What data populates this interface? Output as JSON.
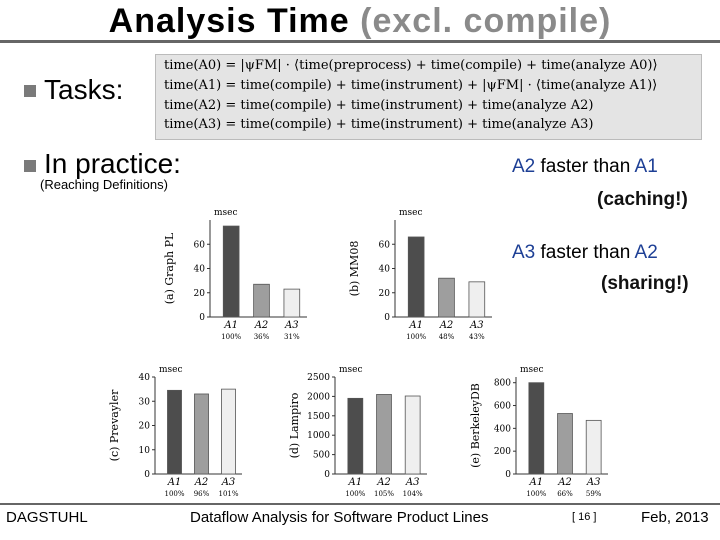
{
  "slide": {
    "title_main": "Analysis Time",
    "title_paren": "(excl. compile)",
    "bullet_tasks": "Tasks:",
    "bullet_practice": "In practice:",
    "practice_note": "(Reaching Definitions)"
  },
  "formulas": [
    "time(A0) = |ψFM| · ⟨time(preprocess) + time(compile) + time(analyze A0)⟩",
    "time(A1) = time(compile) + time(instrument) + |ψFM| · ⟨time(analyze A1)⟩",
    "time(A2) = time(compile) + time(instrument) + time(analyze A2)",
    "time(A3) = time(compile) + time(instrument) + time(analyze A3)"
  ],
  "comparisons": {
    "c1_a": "A2",
    "c1_mid": "faster than",
    "c1_b": "A1",
    "c1_reason": "(caching!)",
    "c2_a": "A3",
    "c2_mid": "faster than",
    "c2_b": "A2",
    "c2_reason": "(sharing!)"
  },
  "chart_data": [
    {
      "type": "bar",
      "label": "(a) Graph PL",
      "unit": "msec",
      "categories": [
        "A1",
        "A2",
        "A3"
      ],
      "values": [
        75,
        27,
        23
      ],
      "percents": [
        "100%",
        "36%",
        "31%"
      ],
      "yticks": [
        0,
        20,
        40,
        60
      ],
      "ylim": [
        0,
        80
      ],
      "colors": [
        "#4d4d4d",
        "#9e9e9e",
        "#efefef"
      ]
    },
    {
      "type": "bar",
      "label": "(b) MM08",
      "unit": "msec",
      "categories": [
        "A1",
        "A2",
        "A3"
      ],
      "values": [
        66,
        32,
        29
      ],
      "percents": [
        "100%",
        "48%",
        "43%"
      ],
      "yticks": [
        0,
        20,
        40,
        60
      ],
      "ylim": [
        0,
        80
      ],
      "colors": [
        "#4d4d4d",
        "#9e9e9e",
        "#efefef"
      ]
    },
    {
      "type": "bar",
      "label": "(c) Prevayler",
      "unit": "msec",
      "categories": [
        "A1",
        "A2",
        "A3"
      ],
      "values": [
        34.5,
        33,
        35
      ],
      "percents": [
        "100%",
        "96%",
        "101%"
      ],
      "yticks": [
        0,
        10,
        20,
        30,
        40
      ],
      "ylim": [
        0,
        40
      ],
      "colors": [
        "#4d4d4d",
        "#9e9e9e",
        "#efefef"
      ]
    },
    {
      "type": "bar",
      "label": "(d) Lampiro",
      "unit": "msec",
      "categories": [
        "A1",
        "A2",
        "A3"
      ],
      "values": [
        1950,
        2050,
        2010
      ],
      "percents": [
        "100%",
        "105%",
        "104%"
      ],
      "yticks": [
        0,
        500,
        1000,
        1500,
        2000,
        2500
      ],
      "ylim": [
        0,
        2500
      ],
      "colors": [
        "#4d4d4d",
        "#9e9e9e",
        "#efefef"
      ]
    },
    {
      "type": "bar",
      "label": "(e) BerkeleyDB",
      "unit": "msec",
      "categories": [
        "A1",
        "A2",
        "A3"
      ],
      "values": [
        800,
        530,
        470
      ],
      "percents": [
        "100%",
        "66%",
        "59%"
      ],
      "yticks": [
        0,
        200,
        400,
        600,
        800
      ],
      "ylim": [
        0,
        850
      ],
      "colors": [
        "#4d4d4d",
        "#9e9e9e",
        "#efefef"
      ]
    }
  ],
  "footer": {
    "left": "DAGSTUHL",
    "center": "Dataflow Analysis for Software Product Lines",
    "page": "[ 16 ]",
    "date": "Feb, 2013"
  }
}
